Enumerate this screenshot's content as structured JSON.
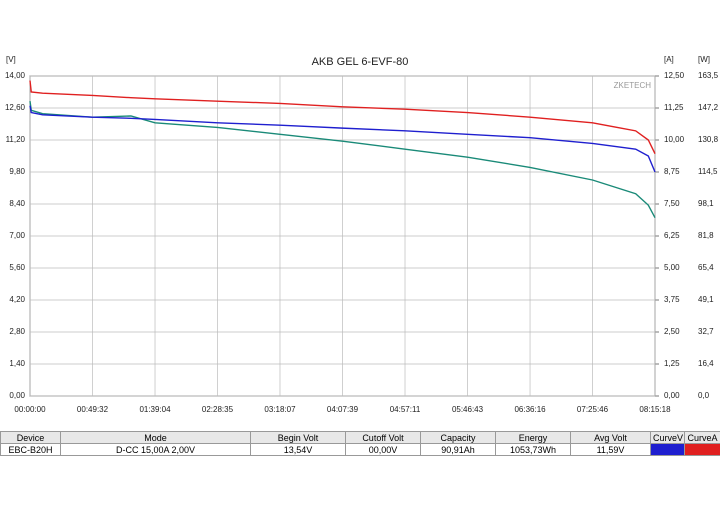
{
  "chart_data": {
    "type": "line",
    "title": "AKB GEL  6-EVF-80",
    "annotation": "ZKETECH",
    "y_label": "[V]",
    "y2_label": "[A]",
    "y3_label": "[W]",
    "x": [
      0,
      60,
      600,
      2972,
      4800,
      5944,
      8915,
      11887,
      14859,
      17831,
      20803,
      23776,
      26746,
      28800,
      29400,
      29718
    ],
    "xlim": [
      0,
      29718
    ],
    "xticks": [
      {
        "value": 0,
        "label": "00:00:00"
      },
      {
        "value": 2972,
        "label": "00:49:32"
      },
      {
        "value": 5944,
        "label": "01:39:04"
      },
      {
        "value": 8915,
        "label": "02:28:35"
      },
      {
        "value": 11887,
        "label": "03:18:07"
      },
      {
        "value": 14859,
        "label": "04:07:39"
      },
      {
        "value": 17831,
        "label": "04:57:11"
      },
      {
        "value": 20803,
        "label": "05:46:43"
      },
      {
        "value": 23776,
        "label": "06:36:16"
      },
      {
        "value": 26746,
        "label": "07:25:46"
      },
      {
        "value": 29718,
        "label": "08:15:18"
      }
    ],
    "ylim": [
      0,
      14
    ],
    "yticks": [
      {
        "value": 0,
        "label": "0,00"
      },
      {
        "value": 1.4,
        "label": "1,40"
      },
      {
        "value": 2.8,
        "label": "2,80"
      },
      {
        "value": 4.2,
        "label": "4,20"
      },
      {
        "value": 5.6,
        "label": "5,60"
      },
      {
        "value": 7,
        "label": "7,00"
      },
      {
        "value": 8.4,
        "label": "8,40"
      },
      {
        "value": 9.8,
        "label": "9,80"
      },
      {
        "value": 11.2,
        "label": "11,20"
      },
      {
        "value": 12.6,
        "label": "12,60"
      },
      {
        "value": 14,
        "label": "14,00"
      }
    ],
    "y2lim": [
      0,
      12.5
    ],
    "y2ticks": [
      {
        "value": 0,
        "label": "0,00"
      },
      {
        "value": 1.25,
        "label": "1,25"
      },
      {
        "value": 2.5,
        "label": "2,50"
      },
      {
        "value": 3.75,
        "label": "3,75"
      },
      {
        "value": 5,
        "label": "5,00"
      },
      {
        "value": 6.25,
        "label": "6,25"
      },
      {
        "value": 7.5,
        "label": "7,50"
      },
      {
        "value": 8.75,
        "label": "8,75"
      },
      {
        "value": 10,
        "label": "10,00"
      },
      {
        "value": 11.25,
        "label": "11,25"
      },
      {
        "value": 12.5,
        "label": "12,50"
      }
    ],
    "y3lim": [
      0,
      163.5
    ],
    "y3ticks": [
      {
        "value": 0,
        "label": "0,0"
      },
      {
        "value": 16.4,
        "label": "16,4"
      },
      {
        "value": 32.7,
        "label": "32,7"
      },
      {
        "value": 49.1,
        "label": "49,1"
      },
      {
        "value": 65.4,
        "label": "65,4"
      },
      {
        "value": 81.8,
        "label": "81,8"
      },
      {
        "value": 98.1,
        "label": "98,1"
      },
      {
        "value": 114.5,
        "label": "114,5"
      },
      {
        "value": 130.8,
        "label": "130,8"
      },
      {
        "value": 147.2,
        "label": "147,2"
      },
      {
        "value": 163.5,
        "label": "163,5"
      }
    ],
    "grid": true,
    "series": [
      {
        "name": "CurveV",
        "color": "#1f1fcf",
        "values": [
          12.7,
          12.4,
          12.3,
          12.2,
          12.15,
          12.1,
          11.95,
          11.85,
          11.72,
          11.6,
          11.45,
          11.3,
          11.05,
          10.8,
          10.5,
          9.8
        ]
      },
      {
        "name": "CurveA",
        "color": "#e02020",
        "values": [
          13.8,
          13.3,
          13.25,
          13.15,
          13.05,
          13.0,
          12.9,
          12.8,
          12.65,
          12.55,
          12.4,
          12.2,
          11.95,
          11.6,
          11.2,
          10.6
        ]
      },
      {
        "color": "#1a8a78",
        "values": [
          12.9,
          12.5,
          12.35,
          12.2,
          12.25,
          11.95,
          11.75,
          11.45,
          11.15,
          10.8,
          10.45,
          10.0,
          9.45,
          8.85,
          8.35,
          7.8
        ]
      }
    ]
  },
  "table": {
    "columns": [
      "Device",
      "Mode",
      "Begin Volt",
      "Cutoff Volt",
      "Capacity",
      "Energy",
      "Avg Volt"
    ],
    "row": [
      "EBC-B20H",
      "D-CC 15,00A  2,00V",
      "13,54V",
      "00,00V",
      "90,91Ah",
      "1053,73Wh",
      "11,59V"
    ]
  }
}
